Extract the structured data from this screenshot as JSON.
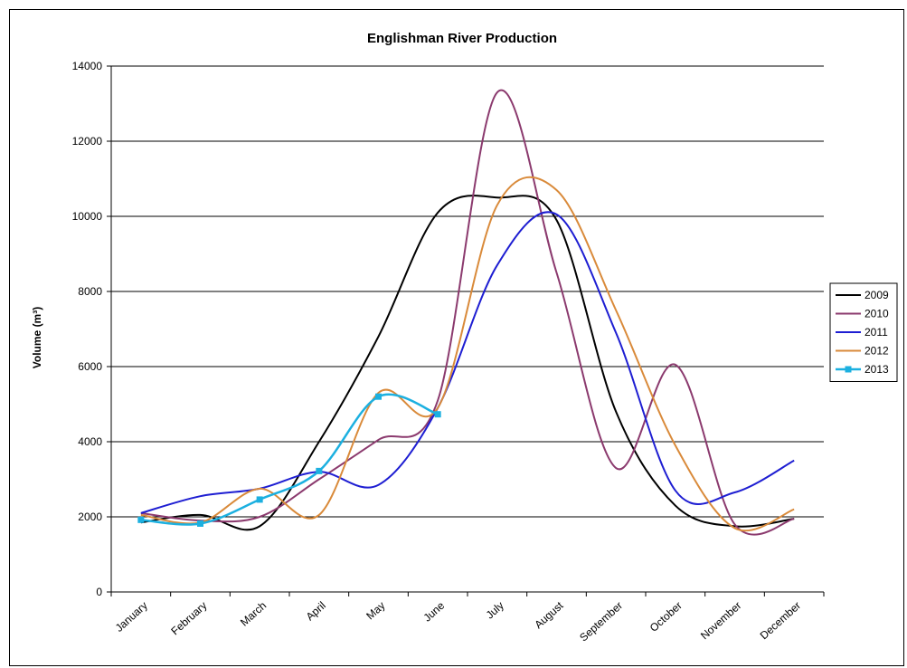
{
  "chart_data": {
    "type": "line",
    "title": "Englishman River Production",
    "xlabel": "",
    "ylabel": "Volume (m³)",
    "ylim": [
      0,
      14000
    ],
    "yticks": [
      0,
      2000,
      4000,
      6000,
      8000,
      10000,
      12000,
      14000
    ],
    "grid": true,
    "legend": "right",
    "categories": [
      "January",
      "February",
      "March",
      "April",
      "May",
      "June",
      "July",
      "August",
      "September",
      "October",
      "November",
      "December"
    ],
    "series": [
      {
        "name": "2009",
        "color": "#000000",
        "markers": false,
        "values": [
          1850,
          2050,
          1750,
          4000,
          6800,
          10100,
          10500,
          9900,
          4800,
          2300,
          1750,
          1950
        ]
      },
      {
        "name": "2010",
        "color": "#8B3A6E",
        "markers": false,
        "values": [
          2100,
          1900,
          2000,
          3000,
          4050,
          5100,
          13300,
          8500,
          3300,
          6050,
          1800,
          1950
        ]
      },
      {
        "name": "2011",
        "color": "#1E1ED2",
        "markers": false,
        "values": [
          2100,
          2550,
          2750,
          3200,
          2850,
          4900,
          8700,
          10050,
          6900,
          2700,
          2650,
          3500
        ]
      },
      {
        "name": "2012",
        "color": "#D98A3A",
        "markers": false,
        "values": [
          2050,
          1850,
          2750,
          2050,
          5300,
          4900,
          10300,
          10700,
          7500,
          3900,
          1700,
          2200
        ]
      },
      {
        "name": "2013",
        "color": "#1CB0E0",
        "markers": true,
        "values": [
          1920,
          1820,
          2460,
          3220,
          5200,
          4730,
          null,
          null,
          null,
          null,
          null,
          null
        ]
      }
    ]
  }
}
